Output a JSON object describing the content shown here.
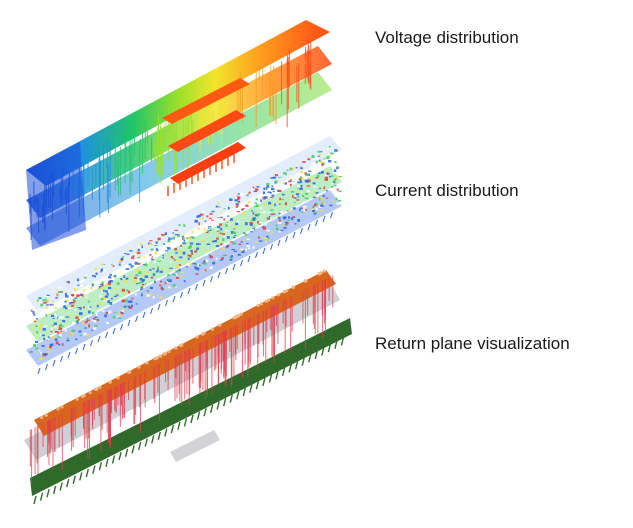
{
  "captions": {
    "voltage": "Voltage distribution",
    "current": "Current distribution",
    "return_plane": "Return plane visualization"
  },
  "colors": {
    "voltage_gradient": [
      "#1a4fd6",
      "#1e90e0",
      "#22c46a",
      "#9be02a",
      "#f2e52a",
      "#ff9a1e",
      "#ff4a14"
    ],
    "voltage_hot": "#ff4a14",
    "current_blue": "#2a63e6",
    "current_green": "#3ecb5a",
    "current_yellow": "#f0e048",
    "current_red": "#e8343a",
    "return_orange": "#d8661e",
    "return_red": "#e23c4c",
    "return_green": "#2f6a2a",
    "return_grey": "#b9bcc4"
  }
}
